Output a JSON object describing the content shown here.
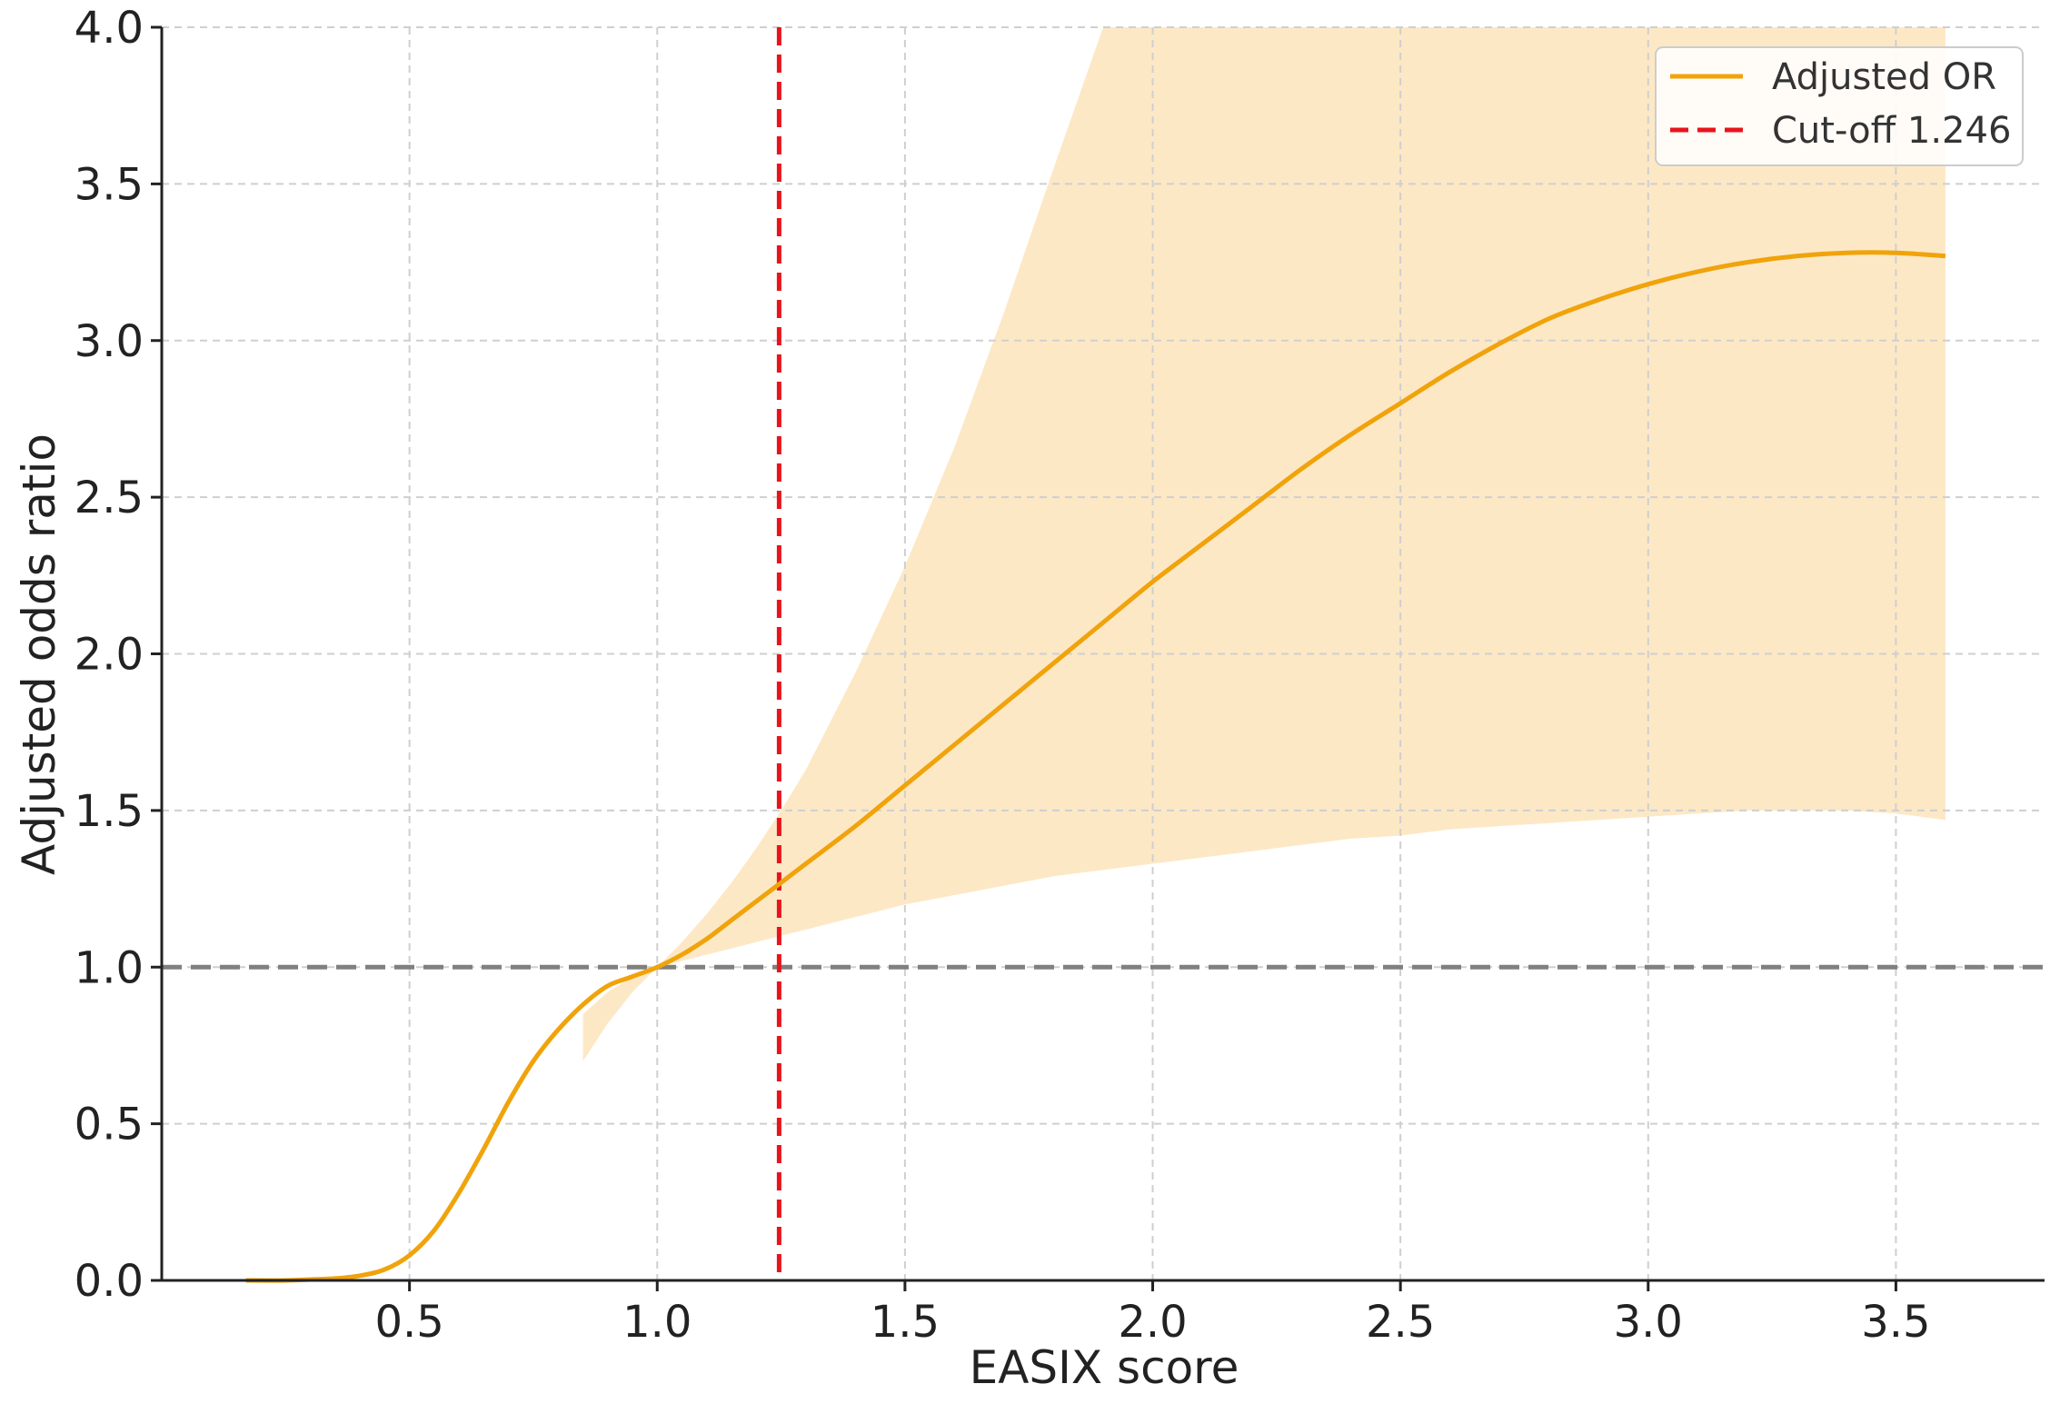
{
  "chart_data": {
    "type": "line",
    "xlabel": "EASIX score",
    "ylabel": "Adjusted odds ratio",
    "xlim": [
      0.0,
      3.8
    ],
    "ylim": [
      0.0,
      4.0
    ],
    "x_ticks": [
      0.5,
      1.0,
      1.5,
      2.0,
      2.5,
      3.0,
      3.5
    ],
    "x_tick_labels": [
      "0.5",
      "1.0",
      "1.5",
      "2.0",
      "2.5",
      "3.0",
      "3.5"
    ],
    "y_ticks": [
      0.0,
      0.5,
      1.0,
      1.5,
      2.0,
      2.5,
      3.0,
      3.5,
      4.0
    ],
    "y_tick_labels": [
      "0.0",
      "0.5",
      "1.0",
      "1.5",
      "2.0",
      "2.5",
      "3.0",
      "3.5",
      "4.0"
    ],
    "grid": true,
    "legend_position": "top-right",
    "series": [
      {
        "name": "Adjusted OR",
        "color": "#f0a30a",
        "x": [
          0.17,
          0.25,
          0.3,
          0.35,
          0.4,
          0.45,
          0.5,
          0.55,
          0.6,
          0.65,
          0.7,
          0.75,
          0.8,
          0.85,
          0.9,
          0.95,
          1.0,
          1.05,
          1.1,
          1.15,
          1.2,
          1.25,
          1.3,
          1.4,
          1.5,
          1.6,
          1.7,
          1.8,
          1.9,
          2.0,
          2.1,
          2.2,
          2.3,
          2.4,
          2.5,
          2.6,
          2.7,
          2.8,
          2.9,
          3.0,
          3.1,
          3.2,
          3.3,
          3.4,
          3.5,
          3.6
        ],
        "y": [
          0.0,
          0.0,
          0.003,
          0.006,
          0.015,
          0.035,
          0.08,
          0.16,
          0.28,
          0.42,
          0.57,
          0.7,
          0.8,
          0.88,
          0.94,
          0.97,
          1.0,
          1.04,
          1.09,
          1.15,
          1.21,
          1.27,
          1.33,
          1.45,
          1.58,
          1.71,
          1.84,
          1.97,
          2.1,
          2.23,
          2.35,
          2.47,
          2.59,
          2.7,
          2.8,
          2.9,
          2.99,
          3.07,
          3.13,
          3.18,
          3.22,
          3.25,
          3.27,
          3.28,
          3.28,
          3.27
        ]
      }
    ],
    "ci_band": {
      "x": [
        0.85,
        0.9,
        0.95,
        1.0,
        1.05,
        1.1,
        1.15,
        1.2,
        1.25,
        1.3,
        1.4,
        1.5,
        1.6,
        1.7,
        1.8,
        1.9,
        2.0,
        2.1,
        2.2,
        2.3,
        2.4,
        2.5,
        2.6,
        2.7,
        2.8,
        2.9,
        3.0,
        3.1,
        3.2,
        3.3,
        3.4,
        3.5,
        3.6
      ],
      "lower": [
        0.7,
        0.82,
        0.92,
        1.0,
        1.02,
        1.04,
        1.06,
        1.08,
        1.1,
        1.12,
        1.16,
        1.2,
        1.23,
        1.26,
        1.29,
        1.31,
        1.33,
        1.35,
        1.37,
        1.39,
        1.41,
        1.42,
        1.44,
        1.45,
        1.46,
        1.47,
        1.48,
        1.49,
        1.5,
        1.5,
        1.5,
        1.49,
        1.47
      ],
      "upper": [
        0.85,
        0.92,
        0.97,
        1.0,
        1.08,
        1.17,
        1.27,
        1.38,
        1.5,
        1.63,
        1.94,
        2.28,
        2.66,
        3.09,
        3.55,
        4.05,
        4.57,
        5.0,
        5.0,
        5.0,
        5.0,
        5.0,
        5.0,
        5.0,
        5.0,
        5.0,
        5.0,
        5.0,
        5.0,
        5.0,
        5.0,
        5.0,
        5.0
      ],
      "color": "#fde8c6"
    },
    "reference_lines": [
      {
        "orientation": "horizontal",
        "value": 1.0,
        "color": "#808080",
        "style": "dashed"
      },
      {
        "orientation": "vertical",
        "value": 1.246,
        "name": "Cut-off 1.246",
        "color": "#e8141b",
        "style": "dashed"
      }
    ]
  }
}
